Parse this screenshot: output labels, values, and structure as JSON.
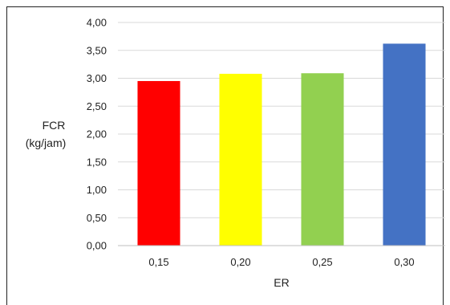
{
  "chart_data": {
    "type": "bar",
    "categories": [
      "0,15",
      "0,20",
      "0,25",
      "0,30"
    ],
    "values": [
      2.95,
      3.08,
      3.09,
      3.62
    ],
    "colors": [
      "#ff0000",
      "#ffff00",
      "#92d050",
      "#4472c4"
    ],
    "xlabel": "ER",
    "ylabel_lines": [
      "FCR",
      "(kg/jam)"
    ],
    "ylim": [
      0,
      4
    ],
    "yticks": [
      "0,00",
      "0,50",
      "1,00",
      "1,50",
      "2,00",
      "2,50",
      "3,00",
      "3,50",
      "4,00"
    ],
    "grid": true,
    "legend": "none"
  }
}
